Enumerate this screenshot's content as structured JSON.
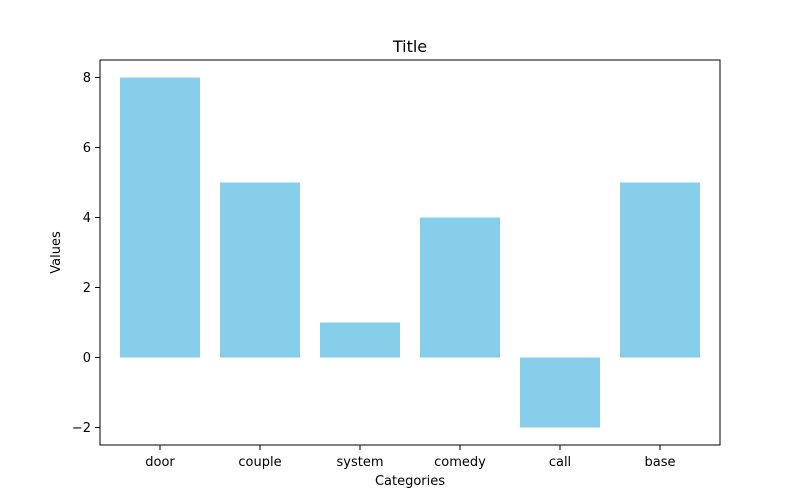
{
  "chart_data": {
    "type": "bar",
    "title": "Title",
    "xlabel": "Categories",
    "ylabel": "Values",
    "categories": [
      "door",
      "couple",
      "system",
      "comedy",
      "call",
      "base"
    ],
    "values": [
      8,
      5,
      1,
      4,
      -2,
      5
    ],
    "ylim": [
      -2.5,
      8.5
    ],
    "yticks": [
      -2,
      0,
      2,
      4,
      6,
      8
    ],
    "ytick_labels": [
      "−2",
      "0",
      "2",
      "4",
      "6",
      "8"
    ],
    "bar_color": "#87CEEB",
    "grid": false
  }
}
